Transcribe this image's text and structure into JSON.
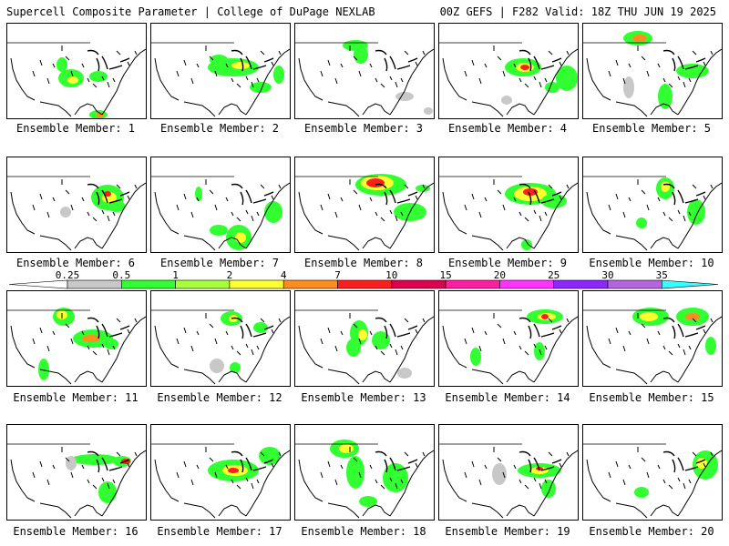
{
  "header": {
    "title_left": "Supercell Composite Parameter | College of DuPage NEXLAB",
    "title_right": "00Z GEFS | F282 Valid: 18Z THU JUN 19 2025"
  },
  "members": [
    {
      "label": "Ensemble Member: 1"
    },
    {
      "label": "Ensemble Member: 2"
    },
    {
      "label": "Ensemble Member: 3"
    },
    {
      "label": "Ensemble Member: 4"
    },
    {
      "label": "Ensemble Member: 5"
    },
    {
      "label": "Ensemble Member: 6"
    },
    {
      "label": "Ensemble Member: 7"
    },
    {
      "label": "Ensemble Member: 8"
    },
    {
      "label": "Ensemble Member: 9"
    },
    {
      "label": "Ensemble Member: 10"
    },
    {
      "label": "Ensemble Member: 11"
    },
    {
      "label": "Ensemble Member: 12"
    },
    {
      "label": "Ensemble Member: 13"
    },
    {
      "label": "Ensemble Member: 14"
    },
    {
      "label": "Ensemble Member: 15"
    },
    {
      "label": "Ensemble Member: 16"
    },
    {
      "label": "Ensemble Member: 17"
    },
    {
      "label": "Ensemble Member: 18"
    },
    {
      "label": "Ensemble Member: 19"
    },
    {
      "label": "Ensemble Member: 20"
    }
  ],
  "colorbar": {
    "levels": [
      "0.25",
      "0.5",
      "1",
      "2",
      "4",
      "7",
      "10",
      "15",
      "20",
      "25",
      "30",
      "35"
    ],
    "colors": [
      "#c8c8c8",
      "#32ff32",
      "#a8ff3c",
      "#ffff32",
      "#ff8c1e",
      "#ff1e1e",
      "#dc0050",
      "#ff1ea0",
      "#ff32ff",
      "#8c28ff",
      "#b464dc",
      "#32ffff"
    ]
  },
  "shading_colors": {
    "light": "#c8c8c8",
    "green": "#32ff32",
    "lime": "#a8ff3c",
    "yellow": "#ffff32",
    "orange": "#ff8c1e",
    "red": "#ff1e1e"
  }
}
